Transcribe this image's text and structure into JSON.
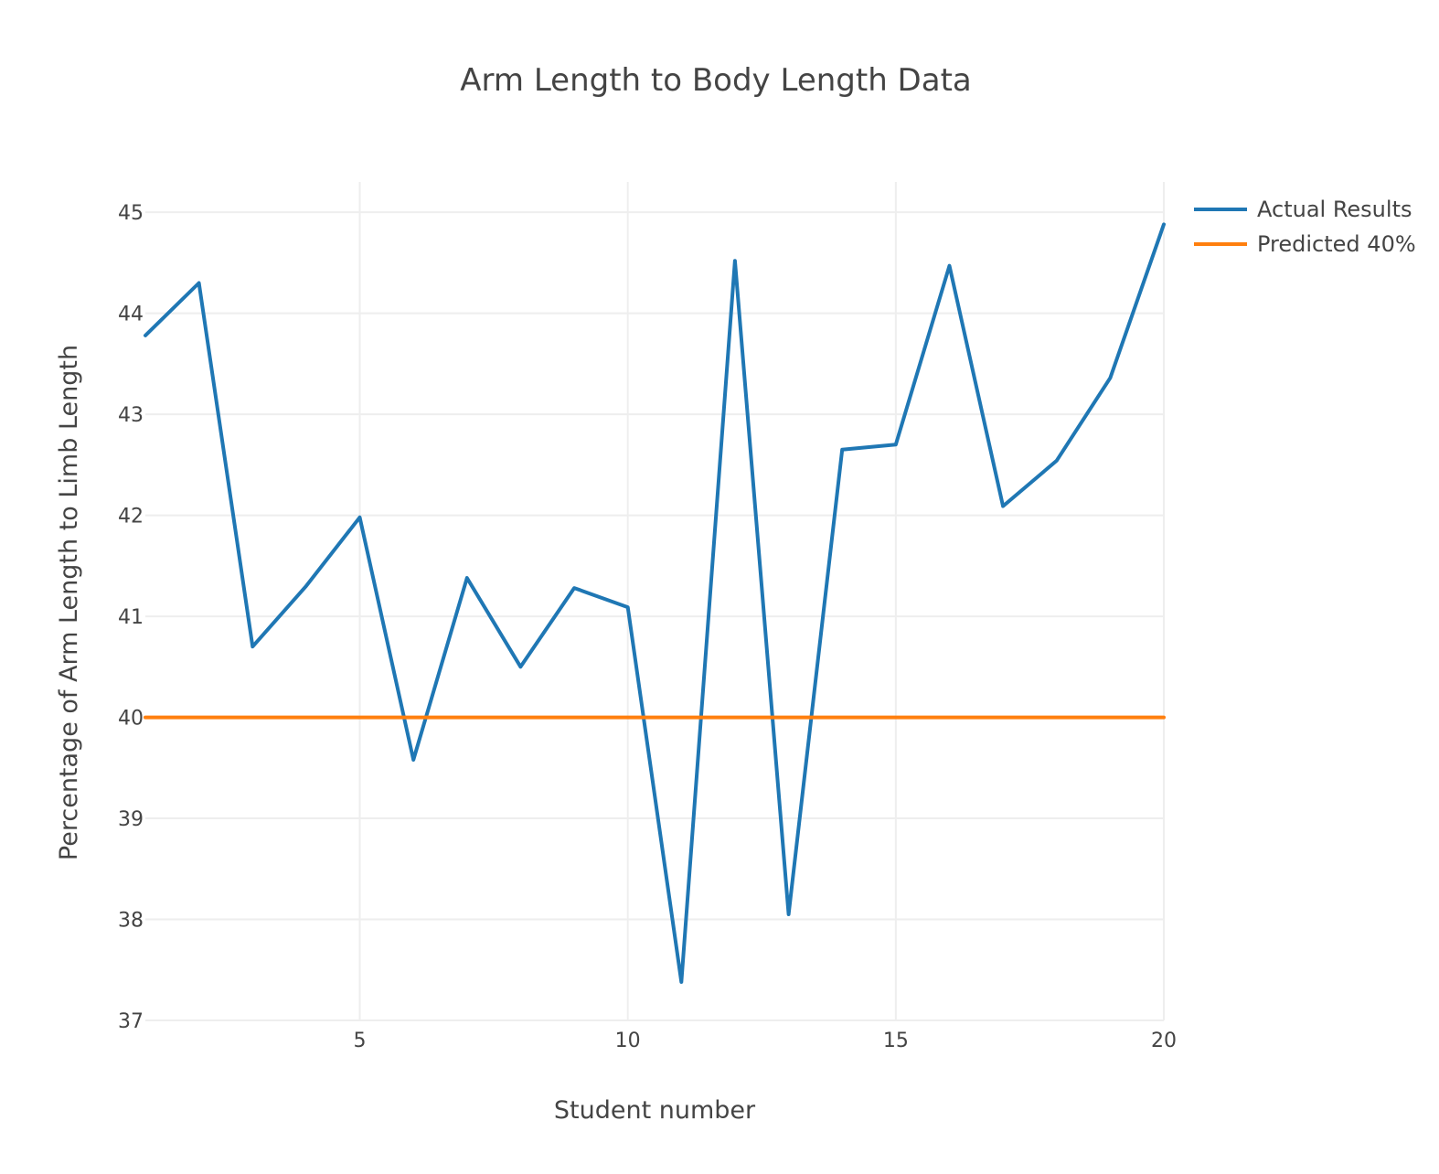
{
  "chart_data": {
    "type": "line",
    "title": "Arm Length to Body Length Data",
    "xlabel": "Student number",
    "ylabel": "Percentage of Arm Length to Limb Length",
    "xlim": [
      1,
      20
    ],
    "ylim": [
      37,
      45.3
    ],
    "x_ticks": [
      5,
      10,
      15,
      20
    ],
    "y_ticks": [
      37,
      38,
      39,
      40,
      41,
      42,
      43,
      44,
      45
    ],
    "grid": true,
    "legend_position": "top-right",
    "series": [
      {
        "name": "Actual Results",
        "color": "#1f77b4",
        "x": [
          1,
          2,
          3,
          4,
          5,
          6,
          7,
          8,
          9,
          10,
          11,
          12,
          13,
          14,
          15,
          16,
          17,
          18,
          19,
          20
        ],
        "values": [
          43.78,
          44.3,
          40.7,
          41.3,
          41.98,
          39.58,
          41.38,
          40.5,
          41.28,
          41.09,
          37.38,
          44.52,
          38.05,
          42.65,
          42.7,
          44.47,
          42.09,
          42.54,
          43.36,
          44.88
        ]
      },
      {
        "name": "Predicted 40%",
        "color": "#ff7f0e",
        "x": [
          1,
          20
        ],
        "values": [
          40,
          40
        ]
      }
    ]
  }
}
